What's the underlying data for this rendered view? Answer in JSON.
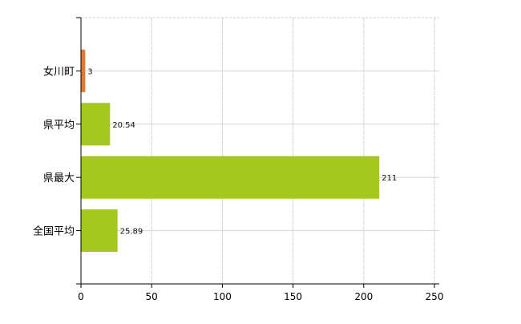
{
  "chart_data": {
    "type": "bar",
    "orientation": "horizontal",
    "categories": [
      "女川町",
      "県平均",
      "県最大",
      "全国平均"
    ],
    "values": [
      3,
      20.54,
      211,
      25.89
    ],
    "data_labels": [
      "3",
      "20.54",
      "211",
      "25.89"
    ],
    "bar_colors": [
      "#e8772e",
      "#a6c81e",
      "#a6c81e",
      "#a6c81e"
    ],
    "xlim": [
      0,
      250
    ],
    "x_ticks": [
      0,
      50,
      100,
      150,
      200,
      250
    ],
    "x_tick_labels": [
      "0",
      "50",
      "100",
      "150",
      "200",
      "250"
    ],
    "grid": true,
    "title": "",
    "xlabel": "",
    "ylabel": ""
  }
}
